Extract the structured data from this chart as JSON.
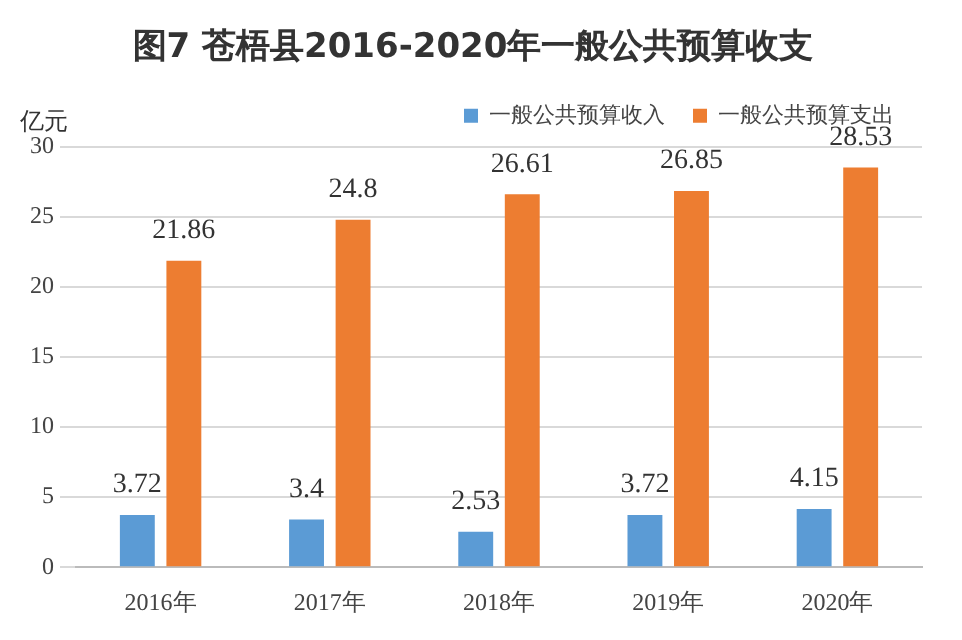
{
  "chart_data": {
    "type": "bar",
    "title": "图7 苍梧县2016-2020年一般公共预算收支",
    "ylabel": "亿元",
    "categories": [
      "2016年",
      "2017年",
      "2018年",
      "2019年",
      "2020年"
    ],
    "series": [
      {
        "name": "一般公共预算收入",
        "color": "#5b9bd5",
        "values": [
          3.72,
          3.4,
          2.53,
          3.72,
          4.15
        ]
      },
      {
        "name": "一般公共预算支出",
        "color": "#ed7d31",
        "values": [
          21.86,
          24.8,
          26.61,
          26.85,
          28.53
        ]
      }
    ],
    "ylim": [
      0,
      30
    ],
    "yticks": [
      0,
      5,
      10,
      15,
      20,
      25,
      30
    ],
    "grid": "y",
    "legend": "top right",
    "data_labels": true
  }
}
